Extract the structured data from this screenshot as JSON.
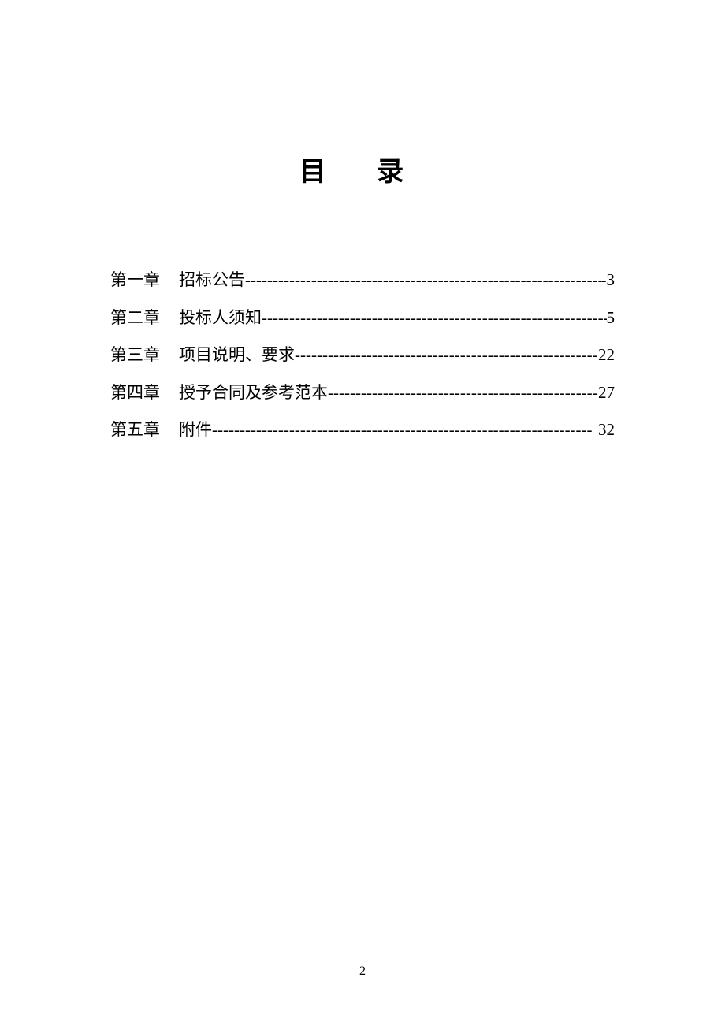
{
  "title": "目 录",
  "toc": {
    "items": [
      {
        "chapter": "第一章",
        "name": "招标公告",
        "page": " -3"
      },
      {
        "chapter": "第二章",
        "name": "投标人须知",
        "page": "5"
      },
      {
        "chapter": "第三章",
        "name": "项目说明、要求",
        "page": "22"
      },
      {
        "chapter": "第四章",
        "name": "授予合同及参考范本",
        "page": "27"
      },
      {
        "chapter": "第五章",
        "name": "附件",
        "page": "32"
      }
    ]
  },
  "leader_char": "-",
  "footer_page": "2",
  "colors": {
    "background": "#ffffff",
    "text": "#000000"
  },
  "typography": {
    "title_fontsize": 34,
    "body_fontsize": 21,
    "footer_fontsize": 16,
    "font_family": "SimSun"
  }
}
